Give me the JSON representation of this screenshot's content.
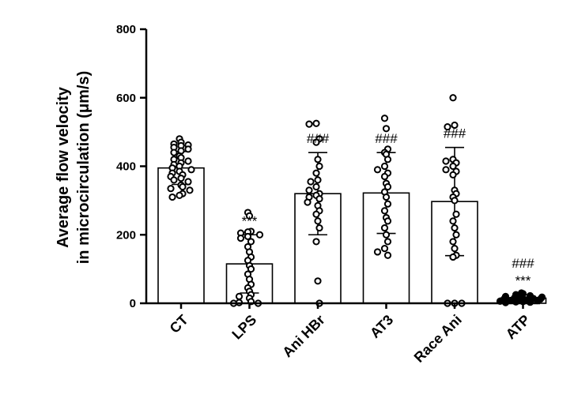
{
  "chart_data": {
    "type": "bar",
    "ylabel_lines": [
      "Average flow velocity",
      "in microcirculation (μm/s)"
    ],
    "ylim": [
      0,
      800
    ],
    "yticks": [
      "0",
      "200",
      "400",
      "600",
      "800"
    ],
    "categories": [
      "CT",
      "LPS",
      "Ani HBr",
      "AT3",
      "Race Ani",
      "ATP"
    ],
    "means": [
      395,
      115,
      320,
      322,
      297,
      15
    ],
    "sd": [
      48,
      85,
      120,
      118,
      158,
      10
    ],
    "annotations": [
      [],
      [
        "***"
      ],
      [
        "###"
      ],
      [
        "###"
      ],
      [
        "###"
      ],
      [
        "***",
        "###"
      ]
    ],
    "points": [
      [
        480,
        470,
        465,
        462,
        460,
        455,
        450,
        445,
        440,
        430,
        425,
        420,
        415,
        410,
        405,
        400,
        395,
        390,
        385,
        380,
        375,
        370,
        365,
        360,
        355,
        345,
        340,
        335,
        330,
        320,
        315,
        310
      ],
      [
        265,
        255,
        210,
        208,
        205,
        200,
        195,
        190,
        180,
        165,
        150,
        135,
        125,
        110,
        100,
        85,
        70,
        55,
        45,
        35,
        25,
        20,
        15,
        5,
        2,
        0,
        0
      ],
      [
        525,
        523,
        480,
        470,
        420,
        400,
        380,
        360,
        355,
        340,
        330,
        320,
        315,
        310,
        305,
        295,
        285,
        270,
        260,
        240,
        220,
        180,
        65,
        0
      ],
      [
        540,
        510,
        450,
        440,
        435,
        420,
        400,
        390,
        380,
        370,
        350,
        340,
        325,
        310,
        290,
        270,
        250,
        240,
        220,
        200,
        180,
        160,
        150,
        140
      ],
      [
        600,
        520,
        515,
        420,
        415,
        410,
        400,
        390,
        385,
        375,
        330,
        320,
        310,
        300,
        260,
        240,
        220,
        200,
        180,
        160,
        140,
        135,
        0,
        0,
        0
      ],
      [
        30,
        28,
        25,
        22,
        20,
        18,
        16,
        15,
        14,
        12,
        12,
        10,
        10,
        8,
        8,
        6,
        5,
        4,
        3,
        2
      ]
    ]
  }
}
